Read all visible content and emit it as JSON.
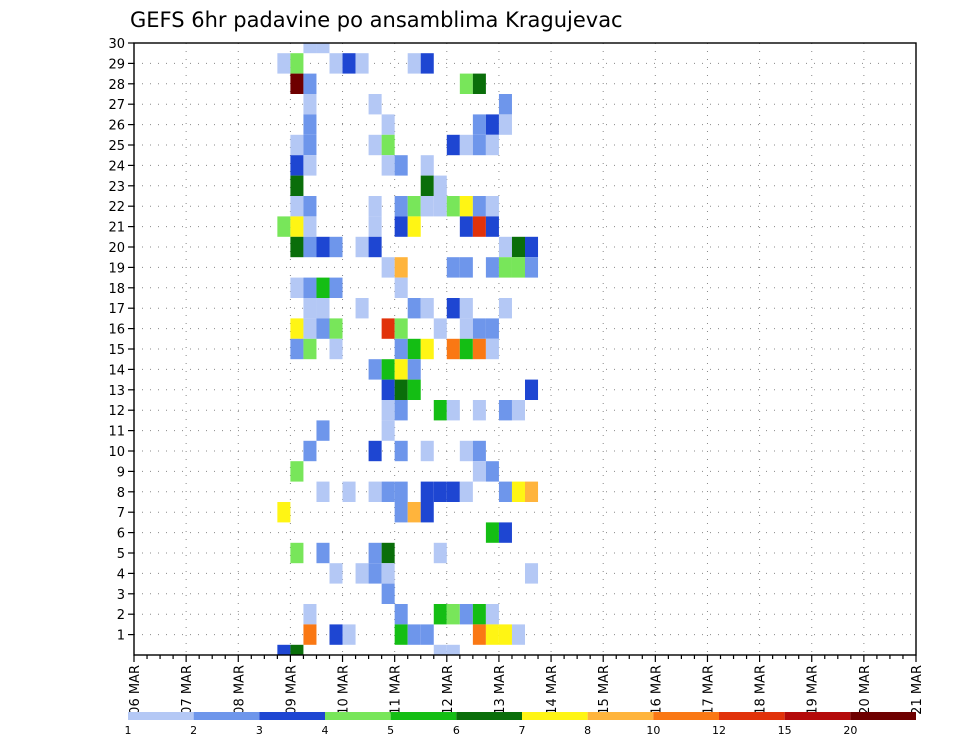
{
  "chart_data": {
    "type": "heatmap",
    "title": "GEFS 6hr padavine po ansamblima Kragujevac",
    "xlabel": "",
    "ylabel": "",
    "x_ticks": [
      "06 MAR",
      "07 MAR",
      "08 MAR",
      "09 MAR",
      "10 MAR",
      "11 MAR",
      "12 MAR",
      "13 MAR",
      "14 MAR",
      "15 MAR",
      "16 MAR",
      "17 MAR",
      "18 MAR",
      "19 MAR",
      "20 MAR",
      "21 MAR"
    ],
    "x_start": "06 MAR 00Z",
    "x_step": "6hr",
    "y_ticks": [
      "1",
      "2",
      "3",
      "4",
      "5",
      "6",
      "7",
      "8",
      "9",
      "10",
      "11",
      "12",
      "13",
      "14",
      "15",
      "16",
      "17",
      "18",
      "19",
      "20",
      "21",
      "22",
      "23",
      "24",
      "25",
      "26",
      "27",
      "28",
      "29",
      "30"
    ],
    "ylim": [
      0,
      30
    ],
    "grid": true,
    "colorbar": {
      "labels": [
        "1",
        "2",
        "3",
        "4",
        "5",
        "6",
        "7",
        "8",
        "10",
        "12",
        "15",
        "20"
      ],
      "colors": [
        "#b4c8f5",
        "#6e96eb",
        "#1e46d2",
        "#78e65a",
        "#14be14",
        "#0a6e0a",
        "#fff514",
        "#ffb43c",
        "#fa7814",
        "#e1320a",
        "#b40a0a",
        "#6e0000"
      ]
    },
    "cells_note": "each cell: [ensemble member, 6-hour step from 06 MAR 00Z, color index into colorbar]",
    "cells": [
      [
        30,
        13,
        0
      ],
      [
        30,
        14,
        0
      ],
      [
        29,
        11,
        0
      ],
      [
        29,
        12,
        3
      ],
      [
        29,
        15,
        0
      ],
      [
        29,
        16,
        2
      ],
      [
        29,
        17,
        0
      ],
      [
        29,
        21,
        0
      ],
      [
        29,
        22,
        2
      ],
      [
        28,
        12,
        11
      ],
      [
        28,
        13,
        1
      ],
      [
        28,
        25,
        3
      ],
      [
        28,
        26,
        5
      ],
      [
        27,
        13,
        0
      ],
      [
        27,
        18,
        0
      ],
      [
        27,
        28,
        1
      ],
      [
        26,
        13,
        1
      ],
      [
        26,
        19,
        0
      ],
      [
        26,
        26,
        1
      ],
      [
        26,
        27,
        2
      ],
      [
        26,
        28,
        0
      ],
      [
        25,
        12,
        0
      ],
      [
        25,
        13,
        1
      ],
      [
        25,
        18,
        0
      ],
      [
        25,
        19,
        3
      ],
      [
        25,
        24,
        2
      ],
      [
        25,
        25,
        0
      ],
      [
        25,
        26,
        1
      ],
      [
        25,
        27,
        0
      ],
      [
        24,
        12,
        2
      ],
      [
        24,
        13,
        0
      ],
      [
        24,
        19,
        0
      ],
      [
        24,
        20,
        1
      ],
      [
        24,
        22,
        0
      ],
      [
        23,
        12,
        5
      ],
      [
        23,
        22,
        5
      ],
      [
        23,
        23,
        0
      ],
      [
        22,
        12,
        0
      ],
      [
        22,
        13,
        1
      ],
      [
        22,
        18,
        0
      ],
      [
        22,
        20,
        1
      ],
      [
        22,
        21,
        3
      ],
      [
        22,
        22,
        0
      ],
      [
        22,
        23,
        0
      ],
      [
        22,
        24,
        3
      ],
      [
        22,
        25,
        6
      ],
      [
        22,
        26,
        1
      ],
      [
        22,
        27,
        0
      ],
      [
        21,
        11,
        3
      ],
      [
        21,
        12,
        6
      ],
      [
        21,
        13,
        0
      ],
      [
        21,
        18,
        0
      ],
      [
        21,
        20,
        2
      ],
      [
        21,
        21,
        6
      ],
      [
        21,
        25,
        2
      ],
      [
        21,
        26,
        9
      ],
      [
        21,
        27,
        2
      ],
      [
        20,
        12,
        5
      ],
      [
        20,
        13,
        1
      ],
      [
        20,
        14,
        2
      ],
      [
        20,
        15,
        1
      ],
      [
        20,
        17,
        0
      ],
      [
        20,
        18,
        2
      ],
      [
        20,
        28,
        0
      ],
      [
        20,
        29,
        5
      ],
      [
        20,
        30,
        2
      ],
      [
        19,
        19,
        0
      ],
      [
        19,
        20,
        7
      ],
      [
        19,
        24,
        1
      ],
      [
        19,
        25,
        1
      ],
      [
        19,
        27,
        1
      ],
      [
        19,
        28,
        3
      ],
      [
        19,
        29,
        3
      ],
      [
        19,
        30,
        1
      ],
      [
        18,
        12,
        0
      ],
      [
        18,
        13,
        1
      ],
      [
        18,
        14,
        4
      ],
      [
        18,
        15,
        1
      ],
      [
        18,
        20,
        0
      ],
      [
        17,
        13,
        0
      ],
      [
        17,
        14,
        0
      ],
      [
        17,
        17,
        0
      ],
      [
        17,
        21,
        1
      ],
      [
        17,
        22,
        0
      ],
      [
        17,
        24,
        2
      ],
      [
        17,
        25,
        0
      ],
      [
        17,
        28,
        0
      ],
      [
        16,
        12,
        6
      ],
      [
        16,
        13,
        0
      ],
      [
        16,
        14,
        1
      ],
      [
        16,
        15,
        3
      ],
      [
        16,
        19,
        9
      ],
      [
        16,
        20,
        3
      ],
      [
        16,
        23,
        0
      ],
      [
        16,
        25,
        0
      ],
      [
        16,
        26,
        1
      ],
      [
        16,
        27,
        1
      ],
      [
        15,
        12,
        1
      ],
      [
        15,
        13,
        3
      ],
      [
        15,
        15,
        0
      ],
      [
        15,
        20,
        1
      ],
      [
        15,
        21,
        4
      ],
      [
        15,
        22,
        6
      ],
      [
        15,
        24,
        8
      ],
      [
        15,
        25,
        4
      ],
      [
        15,
        26,
        8
      ],
      [
        15,
        27,
        0
      ],
      [
        14,
        18,
        1
      ],
      [
        14,
        19,
        4
      ],
      [
        14,
        20,
        6
      ],
      [
        14,
        21,
        1
      ],
      [
        13,
        19,
        2
      ],
      [
        13,
        20,
        5
      ],
      [
        13,
        21,
        4
      ],
      [
        13,
        30,
        2
      ],
      [
        12,
        19,
        0
      ],
      [
        12,
        20,
        1
      ],
      [
        12,
        23,
        4
      ],
      [
        12,
        24,
        0
      ],
      [
        12,
        26,
        0
      ],
      [
        12,
        28,
        1
      ],
      [
        12,
        29,
        0
      ],
      [
        11,
        14,
        1
      ],
      [
        11,
        19,
        0
      ],
      [
        10,
        13,
        1
      ],
      [
        10,
        18,
        2
      ],
      [
        10,
        20,
        1
      ],
      [
        10,
        22,
        0
      ],
      [
        10,
        25,
        0
      ],
      [
        10,
        26,
        1
      ],
      [
        9,
        12,
        3
      ],
      [
        9,
        26,
        0
      ],
      [
        9,
        27,
        1
      ],
      [
        8,
        14,
        0
      ],
      [
        8,
        16,
        0
      ],
      [
        8,
        18,
        0
      ],
      [
        8,
        19,
        1
      ],
      [
        8,
        20,
        1
      ],
      [
        8,
        22,
        2
      ],
      [
        8,
        23,
        2
      ],
      [
        8,
        24,
        2
      ],
      [
        8,
        25,
        0
      ],
      [
        8,
        28,
        1
      ],
      [
        8,
        29,
        6
      ],
      [
        8,
        30,
        7
      ],
      [
        7,
        11,
        6
      ],
      [
        7,
        20,
        1
      ],
      [
        7,
        21,
        7
      ],
      [
        7,
        22,
        2
      ],
      [
        6,
        27,
        4
      ],
      [
        6,
        28,
        2
      ],
      [
        5,
        12,
        3
      ],
      [
        5,
        14,
        1
      ],
      [
        5,
        18,
        1
      ],
      [
        5,
        19,
        5
      ],
      [
        5,
        23,
        0
      ],
      [
        4,
        15,
        0
      ],
      [
        4,
        17,
        0
      ],
      [
        4,
        18,
        1
      ],
      [
        4,
        19,
        0
      ],
      [
        4,
        30,
        0
      ],
      [
        3,
        19,
        1
      ],
      [
        2,
        13,
        0
      ],
      [
        2,
        20,
        1
      ],
      [
        2,
        23,
        4
      ],
      [
        2,
        24,
        3
      ],
      [
        2,
        25,
        1
      ],
      [
        2,
        26,
        4
      ],
      [
        2,
        27,
        0
      ],
      [
        1,
        13,
        8
      ],
      [
        1,
        15,
        2
      ],
      [
        1,
        16,
        0
      ],
      [
        1,
        20,
        4
      ],
      [
        1,
        21,
        1
      ],
      [
        1,
        22,
        1
      ],
      [
        1,
        26,
        8
      ],
      [
        1,
        27,
        6
      ],
      [
        1,
        28,
        6
      ],
      [
        1,
        29,
        0
      ],
      [
        0,
        11,
        2
      ],
      [
        0,
        12,
        5
      ],
      [
        0,
        23,
        0
      ],
      [
        0,
        24,
        0
      ]
    ]
  }
}
